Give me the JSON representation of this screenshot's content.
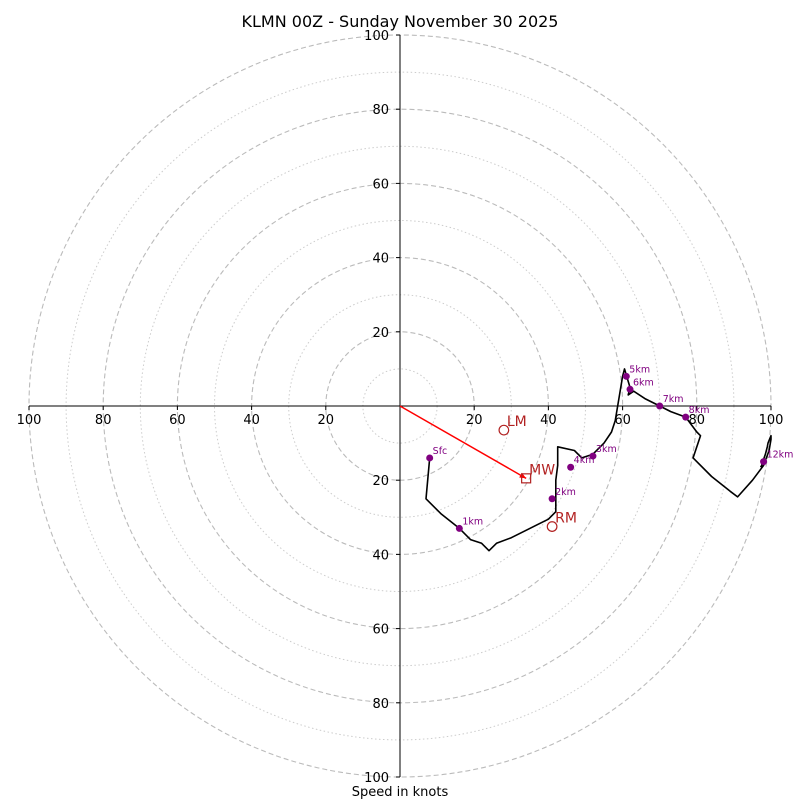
{
  "chart_data": {
    "type": "hodograph",
    "title": "KLMN 00Z - Sunday November 30 2025",
    "xlabel": "Speed in knots",
    "axis_range": [
      -100,
      100
    ],
    "ring_speeds_dashed": [
      20,
      40,
      60,
      80,
      100
    ],
    "ring_speeds_dotted": [
      10,
      30,
      50,
      70,
      90
    ],
    "x_tick_labels": [
      "100",
      "80",
      "60",
      "40",
      "20",
      "20",
      "40",
      "60",
      "80",
      "100"
    ],
    "y_tick_labels": [
      "100",
      "80",
      "60",
      "40",
      "20",
      "20",
      "40",
      "60",
      "80",
      "100"
    ],
    "tick_values": [
      -100,
      -80,
      -60,
      -40,
      -20,
      20,
      40,
      60,
      80,
      100
    ],
    "trace": [
      [
        8,
        -14
      ],
      [
        7,
        -25
      ],
      [
        11,
        -29
      ],
      [
        16,
        -33
      ],
      [
        19,
        -36
      ],
      [
        22,
        -37
      ],
      [
        24,
        -39
      ],
      [
        26,
        -37
      ],
      [
        30,
        -35.5
      ],
      [
        34,
        -33.5
      ],
      [
        37,
        -32
      ],
      [
        40,
        -30.5
      ],
      [
        42,
        -28.5
      ],
      [
        42,
        -24
      ],
      [
        42,
        -20
      ],
      [
        42.5,
        -16
      ],
      [
        42.5,
        -11
      ],
      [
        47,
        -12
      ],
      [
        49,
        -14
      ],
      [
        52,
        -13
      ],
      [
        55,
        -10
      ],
      [
        57,
        -7
      ],
      [
        58,
        -4
      ],
      [
        59,
        2
      ],
      [
        60,
        8
      ],
      [
        60.5,
        10
      ],
      [
        62,
        5
      ],
      [
        61.5,
        3
      ],
      [
        63,
        4
      ],
      [
        66,
        2
      ],
      [
        70,
        0
      ],
      [
        73,
        -1.5
      ],
      [
        77,
        -3
      ],
      [
        80,
        -7
      ],
      [
        81,
        -8
      ],
      [
        79,
        -14
      ],
      [
        84,
        -19
      ],
      [
        89,
        -23
      ],
      [
        91,
        -24.5
      ],
      [
        95,
        -20
      ],
      [
        98,
        -16
      ],
      [
        99.5,
        -12
      ],
      [
        100,
        -9
      ],
      [
        100,
        -8
      ],
      [
        99.2,
        -10
      ],
      [
        99,
        -11
      ],
      [
        98.5,
        -13
      ],
      [
        97.8,
        -15
      ],
      [
        97.5,
        -16
      ],
      [
        97.2,
        -16.5
      ]
    ],
    "height_points": [
      {
        "label": "Sfc",
        "u": 8,
        "v": -14
      },
      {
        "label": "1km",
        "u": 16,
        "v": -33
      },
      {
        "label": "2km",
        "u": 41,
        "v": -25
      },
      {
        "label": "3km",
        "u": 52,
        "v": -13.5
      },
      {
        "label": "4km",
        "u": 46,
        "v": -16.5
      },
      {
        "label": "5km",
        "u": 61,
        "v": 8
      },
      {
        "label": "6km",
        "u": 62,
        "v": 4.5
      },
      {
        "label": "7km",
        "u": 70,
        "v": 0
      },
      {
        "label": "8km",
        "u": 77,
        "v": -3
      },
      {
        "label": "12km",
        "u": 98,
        "v": -15
      }
    ],
    "markers": [
      {
        "label": "LM",
        "symbol": "circle",
        "u": 28,
        "v": -6.5
      },
      {
        "label": "MW",
        "symbol": "square",
        "u": 34,
        "v": -19.5
      },
      {
        "label": "RM",
        "symbol": "circle",
        "u": 41,
        "v": -32.5
      }
    ],
    "mean_wind_vector": {
      "u": 34,
      "v": -19.5
    },
    "colors": {
      "trace": "#000000",
      "height_points": "#800080",
      "markers": "#b22222",
      "vector": "#ff0000",
      "grid": "#bbbbbb"
    }
  }
}
